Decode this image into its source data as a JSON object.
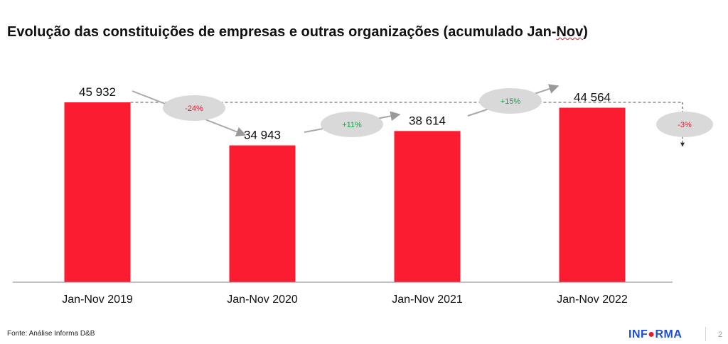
{
  "title_main": "Evolução das constituições de empresas e outras organizações (acumulado Jan-",
  "title_end": "Nov",
  "title_close": ")",
  "source": "Fonte: Análise Informa D&B",
  "logo": {
    "part1": "INF",
    "part2": "RMA"
  },
  "page_number": "2",
  "colors": {
    "bar": "#fc1c31",
    "axis": "#888888",
    "bubble": "#d9d9d9",
    "positive": "#1aa34a",
    "negative": "#e8172f"
  },
  "chart_data": {
    "type": "bar",
    "title": "Evolução das constituições de empresas e outras organizações (acumulado Jan-Nov)",
    "categories": [
      "Jan-Nov 2019",
      "Jan-Nov 2020",
      "Jan-Nov 2021",
      "Jan-Nov 2022"
    ],
    "values": [
      45932,
      34943,
      38614,
      44564
    ],
    "value_labels": [
      "45 932",
      "34 943",
      "38 614",
      "44 564"
    ],
    "changes": [
      {
        "label": "-24%",
        "direction": "down"
      },
      {
        "label": "+11%",
        "direction": "up"
      },
      {
        "label": "+15%",
        "direction": "up"
      },
      {
        "label": "-3%",
        "direction": "down"
      }
    ],
    "reference_line": 45932,
    "ylim": [
      0,
      55000
    ],
    "grid": false,
    "legend": "none"
  }
}
